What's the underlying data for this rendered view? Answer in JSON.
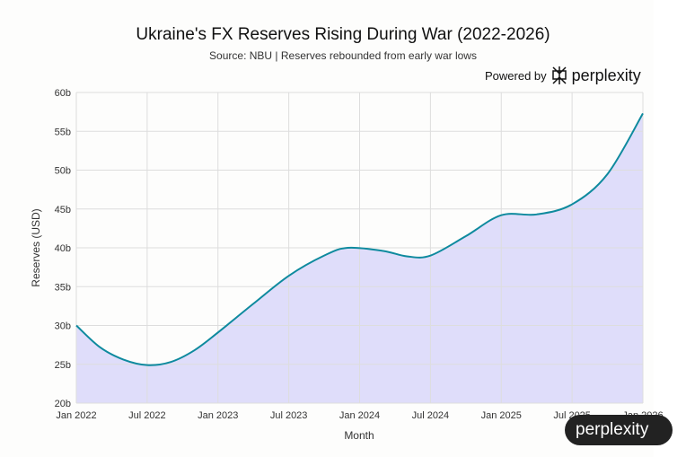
{
  "chart_data": {
    "type": "area",
    "title": "Ukraine's FX Reserves Rising During War (2022-2026)",
    "subtitle": "Source: NBU | Reserves rebounded from early war lows",
    "xlabel": "Month",
    "ylabel": "Reserves (USD)",
    "ylim": [
      20,
      60
    ],
    "yticks": [
      "20b",
      "25b",
      "30b",
      "35b",
      "40b",
      "45b",
      "50b",
      "55b",
      "60b"
    ],
    "xticks": [
      "Jan 2022",
      "Jul 2022",
      "Jan 2023",
      "Jul 2023",
      "Jan 2024",
      "Jul 2024",
      "Jan 2025",
      "Jul 2025",
      "Jan 2026"
    ],
    "grid": true,
    "x": [
      "2022-01",
      "2022-03",
      "2022-05",
      "2022-07",
      "2022-09",
      "2022-11",
      "2023-01",
      "2023-04",
      "2023-07",
      "2023-10",
      "2023-12",
      "2024-03",
      "2024-05",
      "2024-07",
      "2024-10",
      "2025-01",
      "2025-04",
      "2025-07",
      "2025-10",
      "2026-01"
    ],
    "values": [
      30.0,
      27.2,
      25.6,
      24.9,
      25.3,
      26.8,
      29.1,
      32.8,
      36.4,
      39.0,
      40.0,
      39.6,
      38.9,
      39.0,
      41.5,
      44.2,
      44.3,
      45.6,
      49.5,
      57.3
    ],
    "colors": {
      "line": "#0e8a9e",
      "fill": "#dcd9fa"
    }
  },
  "branding": {
    "powered_by": "Powered by",
    "brand": "perplexity",
    "badge": "perplexity"
  }
}
